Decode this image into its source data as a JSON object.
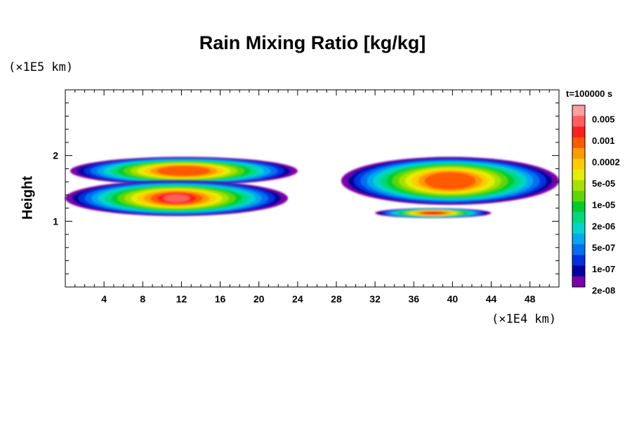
{
  "chart_data": {
    "type": "heatmap",
    "title": "Rain Mixing Ratio [kg/kg]",
    "ylabel": "Height",
    "xlabel": "",
    "x_unit_label": "(×1E4 km)",
    "y_unit_label": "(×1E5 km)",
    "time_label": "t=100000 s",
    "xlim": [
      0,
      51
    ],
    "ylim": [
      0,
      3
    ],
    "x_ticks": [
      4,
      8,
      12,
      16,
      20,
      24,
      28,
      32,
      36,
      40,
      44,
      48
    ],
    "y_ticks": [
      1,
      2
    ],
    "colorbar": {
      "labels": [
        "0.005",
        "0.001",
        "0.0002",
        "5e-05",
        "1e-05",
        "2e-06",
        "5e-07",
        "1e-07",
        "2e-08"
      ],
      "colors": [
        "#ff9f9f",
        "#ff5f5f",
        "#ff1f1f",
        "#ff5a00",
        "#ff9900",
        "#ffcc00",
        "#e6ee00",
        "#a8e000",
        "#5cd800",
        "#00cc2a",
        "#00d880",
        "#00d6c8",
        "#00a8f0",
        "#0070f0",
        "#0030e0",
        "#00009e",
        "#7a00aa"
      ]
    },
    "regions": [
      {
        "name": "left-band-upper",
        "x": [
          0.5,
          24
        ],
        "y": [
          1.55,
          1.98
        ],
        "peak_level": 3
      },
      {
        "name": "left-band-lower",
        "x": [
          0,
          23
        ],
        "y": [
          1.08,
          1.62
        ],
        "peak_level": 1
      },
      {
        "name": "right-band-upper",
        "x": [
          28.5,
          51
        ],
        "y": [
          1.25,
          1.98
        ],
        "peak_level": 3
      },
      {
        "name": "right-band-lower",
        "x": [
          32,
          44
        ],
        "y": [
          1.05,
          1.2
        ],
        "peak_level": 2
      }
    ]
  }
}
